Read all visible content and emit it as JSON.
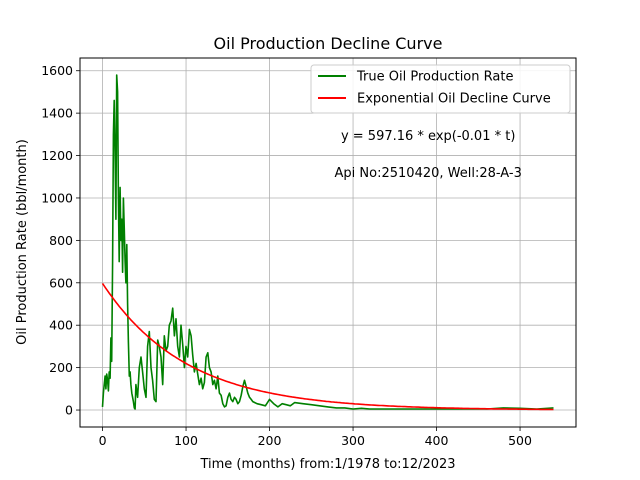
{
  "chart_data": {
    "type": "line",
    "title": "Oil Production Decline Curve",
    "xlabel": "Time (months) from:1/1978 to:12/2023",
    "ylabel": "Oil Production Rate (bbl/month)",
    "xlim": [
      -27,
      567
    ],
    "ylim": [
      -80,
      1660
    ],
    "xticks": [
      0,
      100,
      200,
      300,
      400,
      500
    ],
    "yticks": [
      0,
      200,
      400,
      600,
      800,
      1000,
      1200,
      1400,
      1600
    ],
    "grid": true,
    "legend_position": "top-right",
    "annotations": [
      {
        "text": "y = 597.16 * exp(-0.01 * t)",
        "x": 390,
        "y": 1295
      },
      {
        "text": "Api No:2510420, Well:28-A-3",
        "x": 390,
        "y": 1120
      }
    ],
    "series": [
      {
        "name": "True Oil Production Rate",
        "color": "#008000",
        "x": [
          0,
          1,
          2,
          3,
          4,
          5,
          6,
          7,
          8,
          9,
          10,
          11,
          12,
          13,
          14,
          15,
          16,
          17,
          18,
          19,
          20,
          21,
          22,
          23,
          24,
          25,
          26,
          27,
          28,
          29,
          30,
          31,
          32,
          33,
          34,
          35,
          36,
          37,
          38,
          39,
          40,
          42,
          44,
          46,
          48,
          50,
          52,
          54,
          56,
          58,
          60,
          62,
          64,
          66,
          68,
          70,
          72,
          74,
          76,
          78,
          80,
          82,
          84,
          86,
          88,
          90,
          92,
          94,
          96,
          98,
          100,
          102,
          104,
          106,
          108,
          110,
          112,
          114,
          116,
          118,
          120,
          122,
          124,
          126,
          128,
          130,
          132,
          134,
          136,
          138,
          140,
          142,
          144,
          146,
          148,
          150,
          152,
          154,
          156,
          158,
          160,
          162,
          164,
          166,
          168,
          170,
          172,
          174,
          176,
          178,
          180,
          185,
          190,
          195,
          200,
          205,
          210,
          215,
          220,
          225,
          230,
          240,
          250,
          260,
          270,
          280,
          290,
          300,
          310,
          320,
          330,
          340,
          350,
          360,
          380,
          400,
          420,
          440,
          460,
          480,
          500,
          520,
          540
        ],
        "y": [
          15,
          80,
          120,
          160,
          100,
          170,
          140,
          90,
          180,
          150,
          340,
          230,
          700,
          1300,
          1460,
          1200,
          900,
          1580,
          1500,
          1000,
          700,
          1050,
          800,
          900,
          650,
          1000,
          850,
          700,
          600,
          780,
          500,
          320,
          160,
          180,
          120,
          80,
          60,
          40,
          10,
          5,
          120,
          60,
          200,
          250,
          180,
          100,
          60,
          300,
          370,
          200,
          140,
          50,
          40,
          330,
          300,
          250,
          120,
          350,
          280,
          300,
          400,
          420,
          480,
          350,
          430,
          300,
          250,
          400,
          310,
          200,
          300,
          250,
          380,
          350,
          260,
          180,
          220,
          170,
          120,
          150,
          100,
          130,
          250,
          270,
          200,
          180,
          120,
          140,
          100,
          160,
          80,
          70,
          30,
          15,
          20,
          60,
          80,
          50,
          40,
          60,
          50,
          30,
          40,
          70,
          110,
          140,
          110,
          80,
          60,
          50,
          40,
          30,
          25,
          20,
          50,
          30,
          15,
          30,
          25,
          20,
          35,
          30,
          25,
          20,
          15,
          10,
          10,
          5,
          8,
          5,
          5,
          5,
          5,
          5,
          5,
          5,
          5,
          5,
          5,
          10,
          8,
          5,
          10
        ]
      },
      {
        "name": "Exponential Oil Decline Curve",
        "color": "#ff0000",
        "fit": {
          "a": 597.16,
          "b": 0.01,
          "t_max": 540
        }
      }
    ]
  }
}
